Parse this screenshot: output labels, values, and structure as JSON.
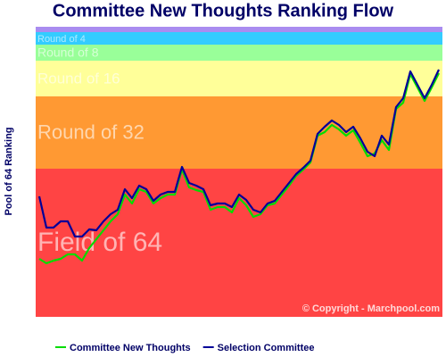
{
  "chart_data": {
    "type": "line",
    "title": "Committee New Thoughts Ranking Flow",
    "y_label": "Pool of 64 Ranking",
    "copyright": "© Copyright - Marchpool.com",
    "xlim": [
      -0.5,
      56.5
    ],
    "ylim": [
      0,
      325
    ],
    "x": [
      0,
      1,
      2,
      3,
      4,
      5,
      6,
      7,
      8,
      9,
      10,
      11,
      12,
      13,
      14,
      15,
      16,
      17,
      18,
      19,
      20,
      21,
      22,
      23,
      24,
      25,
      26,
      27,
      28,
      29,
      30,
      31,
      32,
      33,
      34,
      35,
      36,
      37,
      38,
      39,
      40,
      41,
      42,
      43,
      44,
      45,
      46,
      47,
      48,
      49,
      50,
      51,
      52,
      53,
      54,
      55,
      56
    ],
    "bands": [
      {
        "label": "Field of 64",
        "from": 0,
        "to": 166,
        "color": "#ff4444"
      },
      {
        "label": "Round of 32",
        "from": 166,
        "to": 247,
        "color": "#ff9933"
      },
      {
        "label": "Round of 16",
        "from": 247,
        "to": 287,
        "color": "#ffff99"
      },
      {
        "label": "Round of 8",
        "from": 287,
        "to": 305,
        "color": "#99ff99"
      },
      {
        "label": "Round of 4",
        "from": 305,
        "to": 319,
        "color": "#33ccff"
      },
      {
        "from": 319,
        "to": 325,
        "color": "#a98cf0"
      }
    ],
    "legend": "bottom",
    "series": [
      {
        "name": "Committee New Thoughts",
        "color": "#00dd00",
        "values": [
          65,
          60,
          63,
          65,
          70,
          70,
          63,
          77,
          87,
          97,
          107,
          115,
          137,
          127,
          143,
          140,
          127,
          133,
          137,
          137,
          165,
          145,
          142,
          140,
          120,
          123,
          123,
          117,
          133,
          125,
          112,
          115,
          125,
          127,
          137,
          147,
          158,
          165,
          173,
          203,
          207,
          215,
          210,
          203,
          209,
          195,
          180,
          183,
          198,
          187,
          233,
          240,
          272,
          257,
          242,
          257,
          273
        ]
      },
      {
        "name": "Selection Committee",
        "color": "#000099",
        "values": [
          135,
          100,
          100,
          107,
          107,
          90,
          90,
          98,
          97,
          107,
          115,
          120,
          143,
          133,
          147,
          143,
          130,
          137,
          140,
          140,
          168,
          150,
          147,
          143,
          125,
          127,
          127,
          123,
          137,
          131,
          120,
          117,
          127,
          130,
          140,
          150,
          160,
          167,
          175,
          205,
          213,
          220,
          215,
          207,
          213,
          200,
          185,
          180,
          203,
          193,
          235,
          245,
          275,
          260,
          245,
          260,
          277
        ]
      }
    ]
  }
}
